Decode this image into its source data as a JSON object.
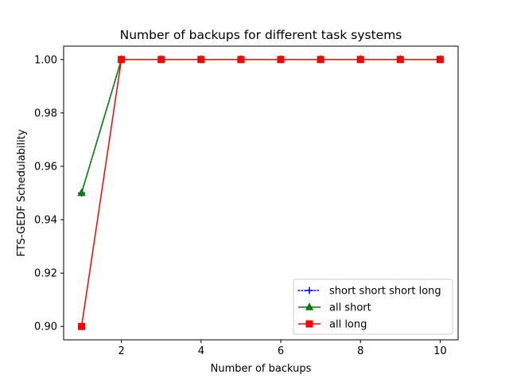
{
  "chart_data": {
    "type": "line",
    "title": "Number of backups for different task systems",
    "xlabel": "Number of backups",
    "ylabel": "FTS-GEDF Schedulability",
    "xlim": [
      0.55,
      10.45
    ],
    "ylim": [
      0.895,
      1.005
    ],
    "xticks": [
      2,
      4,
      6,
      8,
      10
    ],
    "yticks": [
      0.9,
      0.92,
      0.94,
      0.96,
      0.98,
      1.0
    ],
    "ytick_labels": [
      "0.90",
      "0.92",
      "0.94",
      "0.96",
      "0.98",
      "1.00"
    ],
    "grid": false,
    "legend_position": "lower-right",
    "x": [
      1,
      2,
      3,
      4,
      5,
      6,
      7,
      8,
      9,
      10
    ],
    "series": [
      {
        "name": "short short short long",
        "color": "#0000ff",
        "linestyle": "dotted",
        "marker": "plus",
        "values": [
          0.95,
          1.0,
          1.0,
          1.0,
          1.0,
          1.0,
          1.0,
          1.0,
          1.0,
          1.0
        ]
      },
      {
        "name": "all short",
        "color": "#008000",
        "linestyle": "solid",
        "marker": "triangle",
        "values": [
          0.95,
          1.0,
          1.0,
          1.0,
          1.0,
          1.0,
          1.0,
          1.0,
          1.0,
          1.0
        ]
      },
      {
        "name": "all long",
        "color": "#ff0000",
        "linestyle": "solid",
        "marker": "square",
        "values": [
          0.9,
          1.0,
          1.0,
          1.0,
          1.0,
          1.0,
          1.0,
          1.0,
          1.0,
          1.0
        ]
      }
    ]
  }
}
